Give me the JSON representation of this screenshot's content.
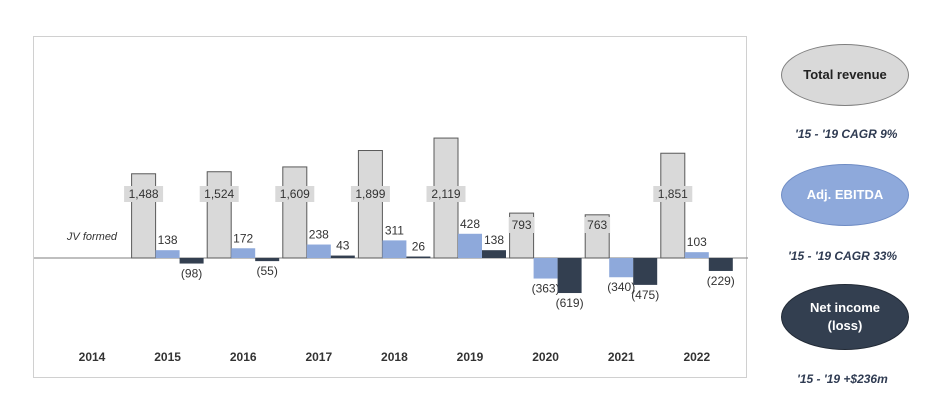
{
  "chart_data": {
    "type": "bar",
    "categories": [
      "2014",
      "2015",
      "2016",
      "2017",
      "2018",
      "2019",
      "2020",
      "2021",
      "2022"
    ],
    "series": [
      {
        "name": "Total revenue",
        "values": [
          null,
          1488,
          1524,
          1609,
          1899,
          2119,
          793,
          763,
          1851
        ],
        "labels": [
          "",
          "1,488",
          "1,524",
          "1,609",
          "1,899",
          "2,119",
          "793",
          "763",
          "1,851"
        ]
      },
      {
        "name": "Adj. EBITDA",
        "values": [
          null,
          138,
          172,
          238,
          311,
          428,
          -363,
          -340,
          103
        ],
        "labels": [
          "",
          "138",
          "172",
          "238",
          "311",
          "428",
          "(363)",
          "(340)",
          "103"
        ]
      },
      {
        "name": "Net income (loss)",
        "values": [
          null,
          -98,
          -55,
          43,
          26,
          138,
          -619,
          -475,
          -229
        ],
        "labels": [
          "",
          "(98)",
          "(55)",
          "43",
          "26",
          "138",
          "(619)",
          "(475)",
          "(229)"
        ]
      }
    ],
    "annotations": [
      {
        "category": "2014",
        "text": "JV formed"
      }
    ],
    "colors": {
      "revenue": "#d9d9d9",
      "revenue_stroke": "#595959",
      "ebitda": "#8ea9db",
      "net_income": "#333f50",
      "axis": "#7f7f7f"
    },
    "xlabel": "",
    "ylabel": "",
    "grid": false,
    "legend_position": "right"
  },
  "legend": [
    {
      "key": "revenue",
      "label": "Total revenue",
      "note": "'15 - '19 CAGR 9%"
    },
    {
      "key": "ebitda",
      "label": "Adj. EBITDA",
      "note": "'15 - '19 CAGR 33%"
    },
    {
      "key": "net_income",
      "label": "Net income (loss)",
      "note": "'15 - '19 +$236m"
    }
  ]
}
